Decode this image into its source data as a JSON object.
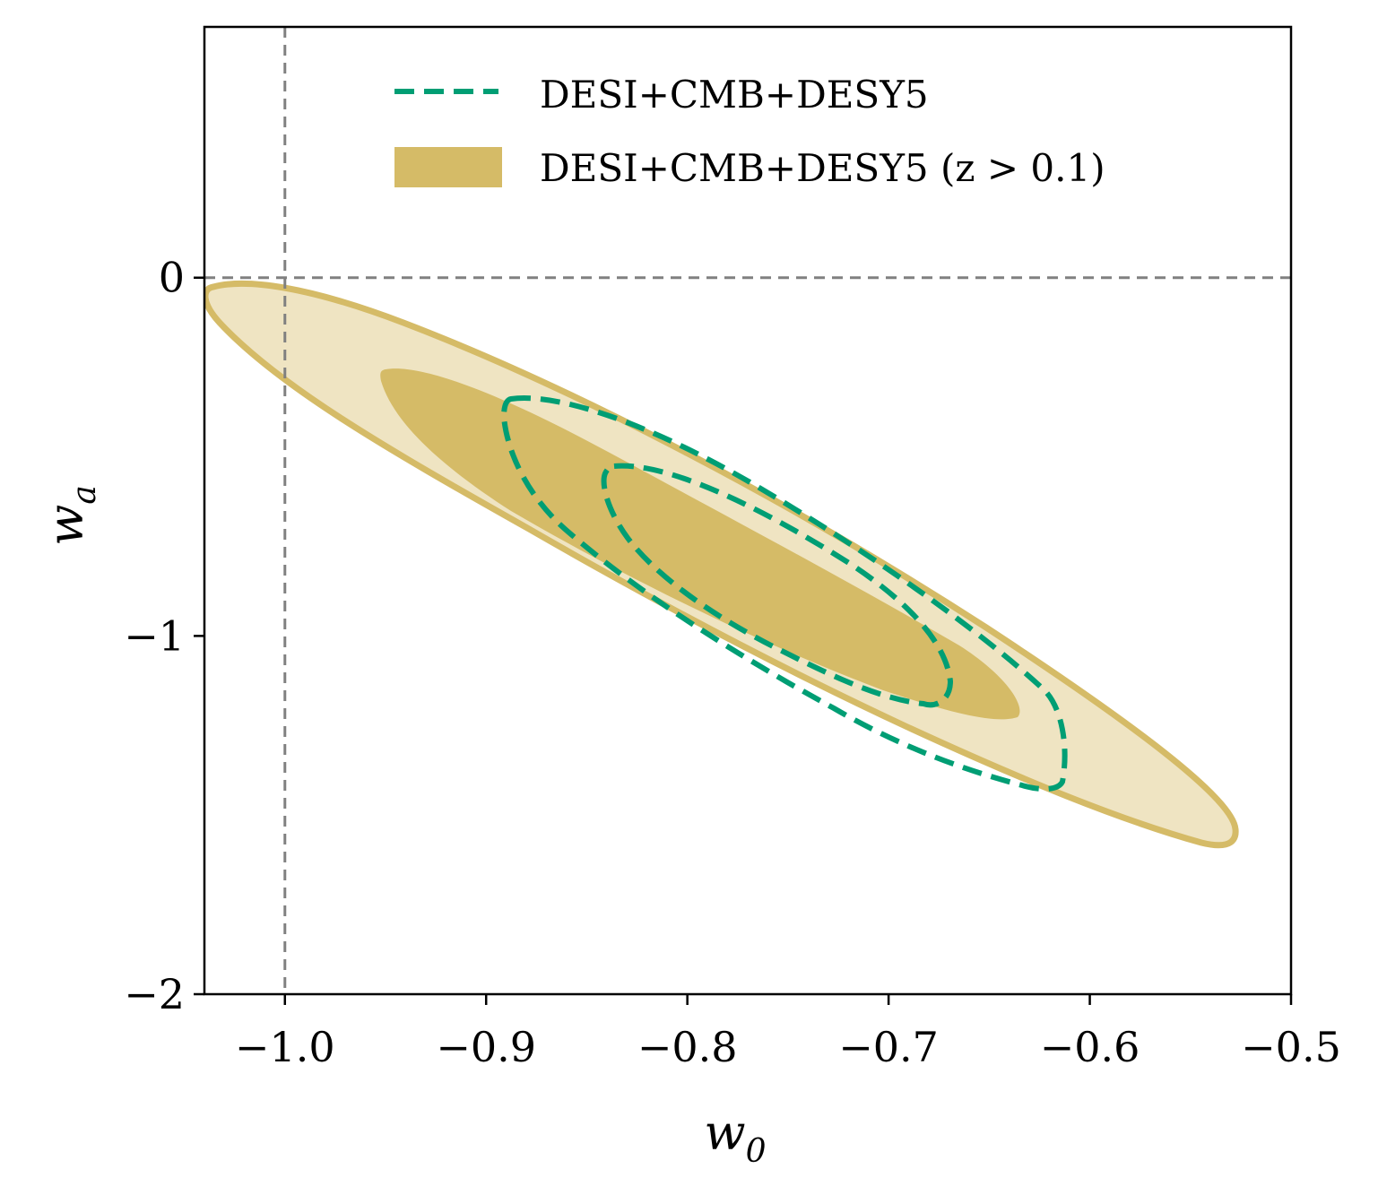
{
  "chart_data": {
    "type": "contour",
    "title": "",
    "xlabel": "w",
    "xlabel_sub": "0",
    "ylabel": "w",
    "ylabel_sub": "a",
    "xlim": [
      -1.04,
      -0.5
    ],
    "ylim": [
      -2.0,
      0.7
    ],
    "xticks": [
      -1.0,
      -0.9,
      -0.8,
      -0.7,
      -0.6,
      -0.5
    ],
    "xtick_labels": [
      "−1.0",
      "−0.9",
      "−0.8",
      "−0.7",
      "−0.6",
      "−0.5"
    ],
    "yticks": [
      0,
      -1,
      -2
    ],
    "ytick_labels": [
      "0",
      "−1",
      "−2"
    ],
    "reference_lines": {
      "x": -1.0,
      "y": 0.0,
      "style": "dashed",
      "color": "#808080"
    },
    "legend_position": "top",
    "series": [
      {
        "name": "DESI+CMB+DESY5",
        "style": "dashed",
        "color": "#009e74",
        "contours": [
          {
            "level": "68%",
            "center": [
              -0.765,
              -0.78
            ],
            "x_range": [
              -0.838,
              -0.672
            ],
            "y_range": [
              -1.19,
              -0.52
            ]
          },
          {
            "level": "95%",
            "center": [
              -0.75,
              -0.86
            ],
            "x_range": [
              -0.89,
              -0.614
            ],
            "y_range": [
              -1.43,
              -0.34
            ]
          }
        ]
      },
      {
        "name": "DESI+CMB+DESY5 (z > 0.1)",
        "style": "filled",
        "color": "#d5bb67",
        "contours": [
          {
            "level": "68%",
            "center": [
              -0.79,
              -0.78
            ],
            "x_range": [
              -0.952,
              -0.635
            ],
            "y_range": [
              -1.22,
              -0.26
            ]
          },
          {
            "level": "95%",
            "center": [
              -0.78,
              -0.78
            ],
            "x_range": [
              -1.036,
              -0.528
            ],
            "y_range": [
              -1.59,
              -0.02
            ]
          }
        ]
      }
    ]
  },
  "legend": {
    "items": [
      {
        "label": "DESI+CMB+DESY5",
        "color": "#009e74",
        "style": "dashed"
      },
      {
        "label": "DESI+CMB+DESY5 (z > 0.1)",
        "color": "#d5bb67",
        "style": "filled"
      }
    ]
  }
}
